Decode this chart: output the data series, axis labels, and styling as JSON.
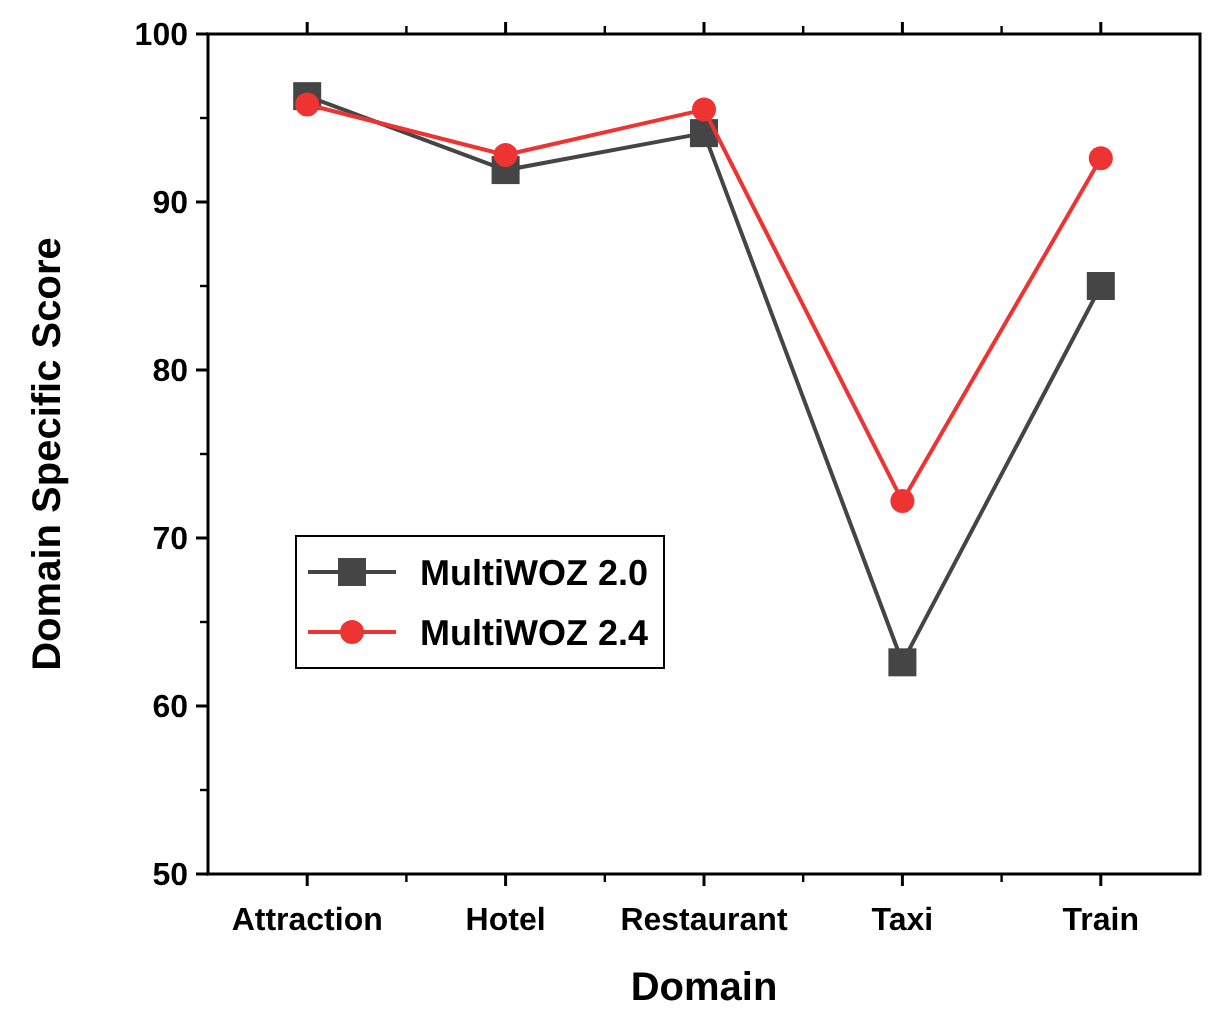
{
  "chart_data": {
    "type": "line",
    "xlabel": "Domain",
    "ylabel": "Domain Specific Score",
    "categories": [
      "Attraction",
      "Hotel",
      "Restaurant",
      "Taxi",
      "Train"
    ],
    "series": [
      {
        "name": "MultiWOZ 2.0",
        "color": "#454545",
        "marker": "square",
        "values": [
          96.3,
          91.9,
          94.1,
          62.6,
          85.0
        ]
      },
      {
        "name": "MultiWOZ 2.4",
        "color": "#ee3333",
        "marker": "circle",
        "values": [
          95.8,
          92.8,
          95.5,
          72.2,
          92.6
        ]
      }
    ],
    "ylim": [
      50,
      100
    ],
    "yticks": [
      50,
      60,
      70,
      80,
      90,
      100
    ],
    "grid": false,
    "legend": "center left",
    "line_style": "solid"
  }
}
